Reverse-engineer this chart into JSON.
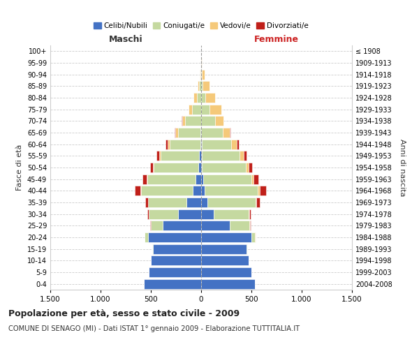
{
  "age_groups": [
    "0-4",
    "5-9",
    "10-14",
    "15-19",
    "20-24",
    "25-29",
    "30-34",
    "35-39",
    "40-44",
    "45-49",
    "50-54",
    "55-59",
    "60-64",
    "65-69",
    "70-74",
    "75-79",
    "80-84",
    "85-89",
    "90-94",
    "95-99",
    "100+"
  ],
  "birth_years": [
    "2004-2008",
    "1999-2003",
    "1994-1998",
    "1989-1993",
    "1984-1988",
    "1979-1983",
    "1974-1978",
    "1969-1973",
    "1964-1968",
    "1959-1963",
    "1954-1958",
    "1949-1953",
    "1944-1948",
    "1939-1943",
    "1934-1938",
    "1929-1933",
    "1924-1928",
    "1919-1923",
    "1914-1918",
    "1909-1913",
    "≤ 1908"
  ],
  "males_celibi": [
    570,
    520,
    500,
    480,
    530,
    385,
    230,
    145,
    85,
    55,
    25,
    18,
    8,
    4,
    3,
    1,
    0,
    0,
    0,
    0,
    0
  ],
  "males_coniugati": [
    0,
    0,
    0,
    5,
    30,
    115,
    290,
    380,
    510,
    480,
    445,
    385,
    305,
    225,
    155,
    88,
    45,
    18,
    4,
    1,
    0
  ],
  "males_vedovi": [
    0,
    0,
    0,
    0,
    0,
    2,
    4,
    4,
    8,
    8,
    12,
    16,
    20,
    25,
    28,
    35,
    30,
    15,
    8,
    2,
    1
  ],
  "males_divorziati": [
    0,
    0,
    0,
    0,
    4,
    8,
    12,
    28,
    60,
    38,
    28,
    22,
    18,
    12,
    7,
    4,
    2,
    1,
    0,
    0,
    0
  ],
  "females_celibi": [
    535,
    500,
    470,
    450,
    500,
    285,
    125,
    65,
    35,
    22,
    8,
    6,
    4,
    2,
    1,
    0,
    0,
    0,
    0,
    0,
    0
  ],
  "females_coniugati": [
    0,
    0,
    0,
    5,
    38,
    195,
    345,
    475,
    530,
    480,
    435,
    375,
    295,
    215,
    135,
    85,
    45,
    16,
    4,
    1,
    0
  ],
  "females_vedovi": [
    0,
    0,
    0,
    0,
    2,
    4,
    8,
    12,
    16,
    22,
    30,
    45,
    55,
    65,
    85,
    115,
    95,
    65,
    30,
    8,
    2
  ],
  "females_divorziati": [
    0,
    0,
    0,
    2,
    4,
    12,
    18,
    32,
    62,
    42,
    32,
    28,
    18,
    8,
    4,
    2,
    1,
    0,
    0,
    0,
    0
  ],
  "colors": {
    "celibi": "#4472c4",
    "coniugati": "#c5d9a0",
    "vedovi": "#f5c97a",
    "divorziati": "#c0201a"
  },
  "title": "Popolazione per età, sesso e stato civile - 2009",
  "subtitle": "COMUNE DI SENAGO (MI) - Dati ISTAT 1° gennaio 2009 - Elaborazione TUTTITALIA.IT",
  "xlabel_left": "Maschi",
  "xlabel_right": "Femmine",
  "ylabel_left": "Fasce di età",
  "ylabel_right": "Anni di nascita",
  "xlim": 1500,
  "legend_labels": [
    "Celibi/Nubili",
    "Coniugati/e",
    "Vedovi/e",
    "Divorziati/e"
  ],
  "bg_color": "#ffffff",
  "grid_color": "#cccccc"
}
